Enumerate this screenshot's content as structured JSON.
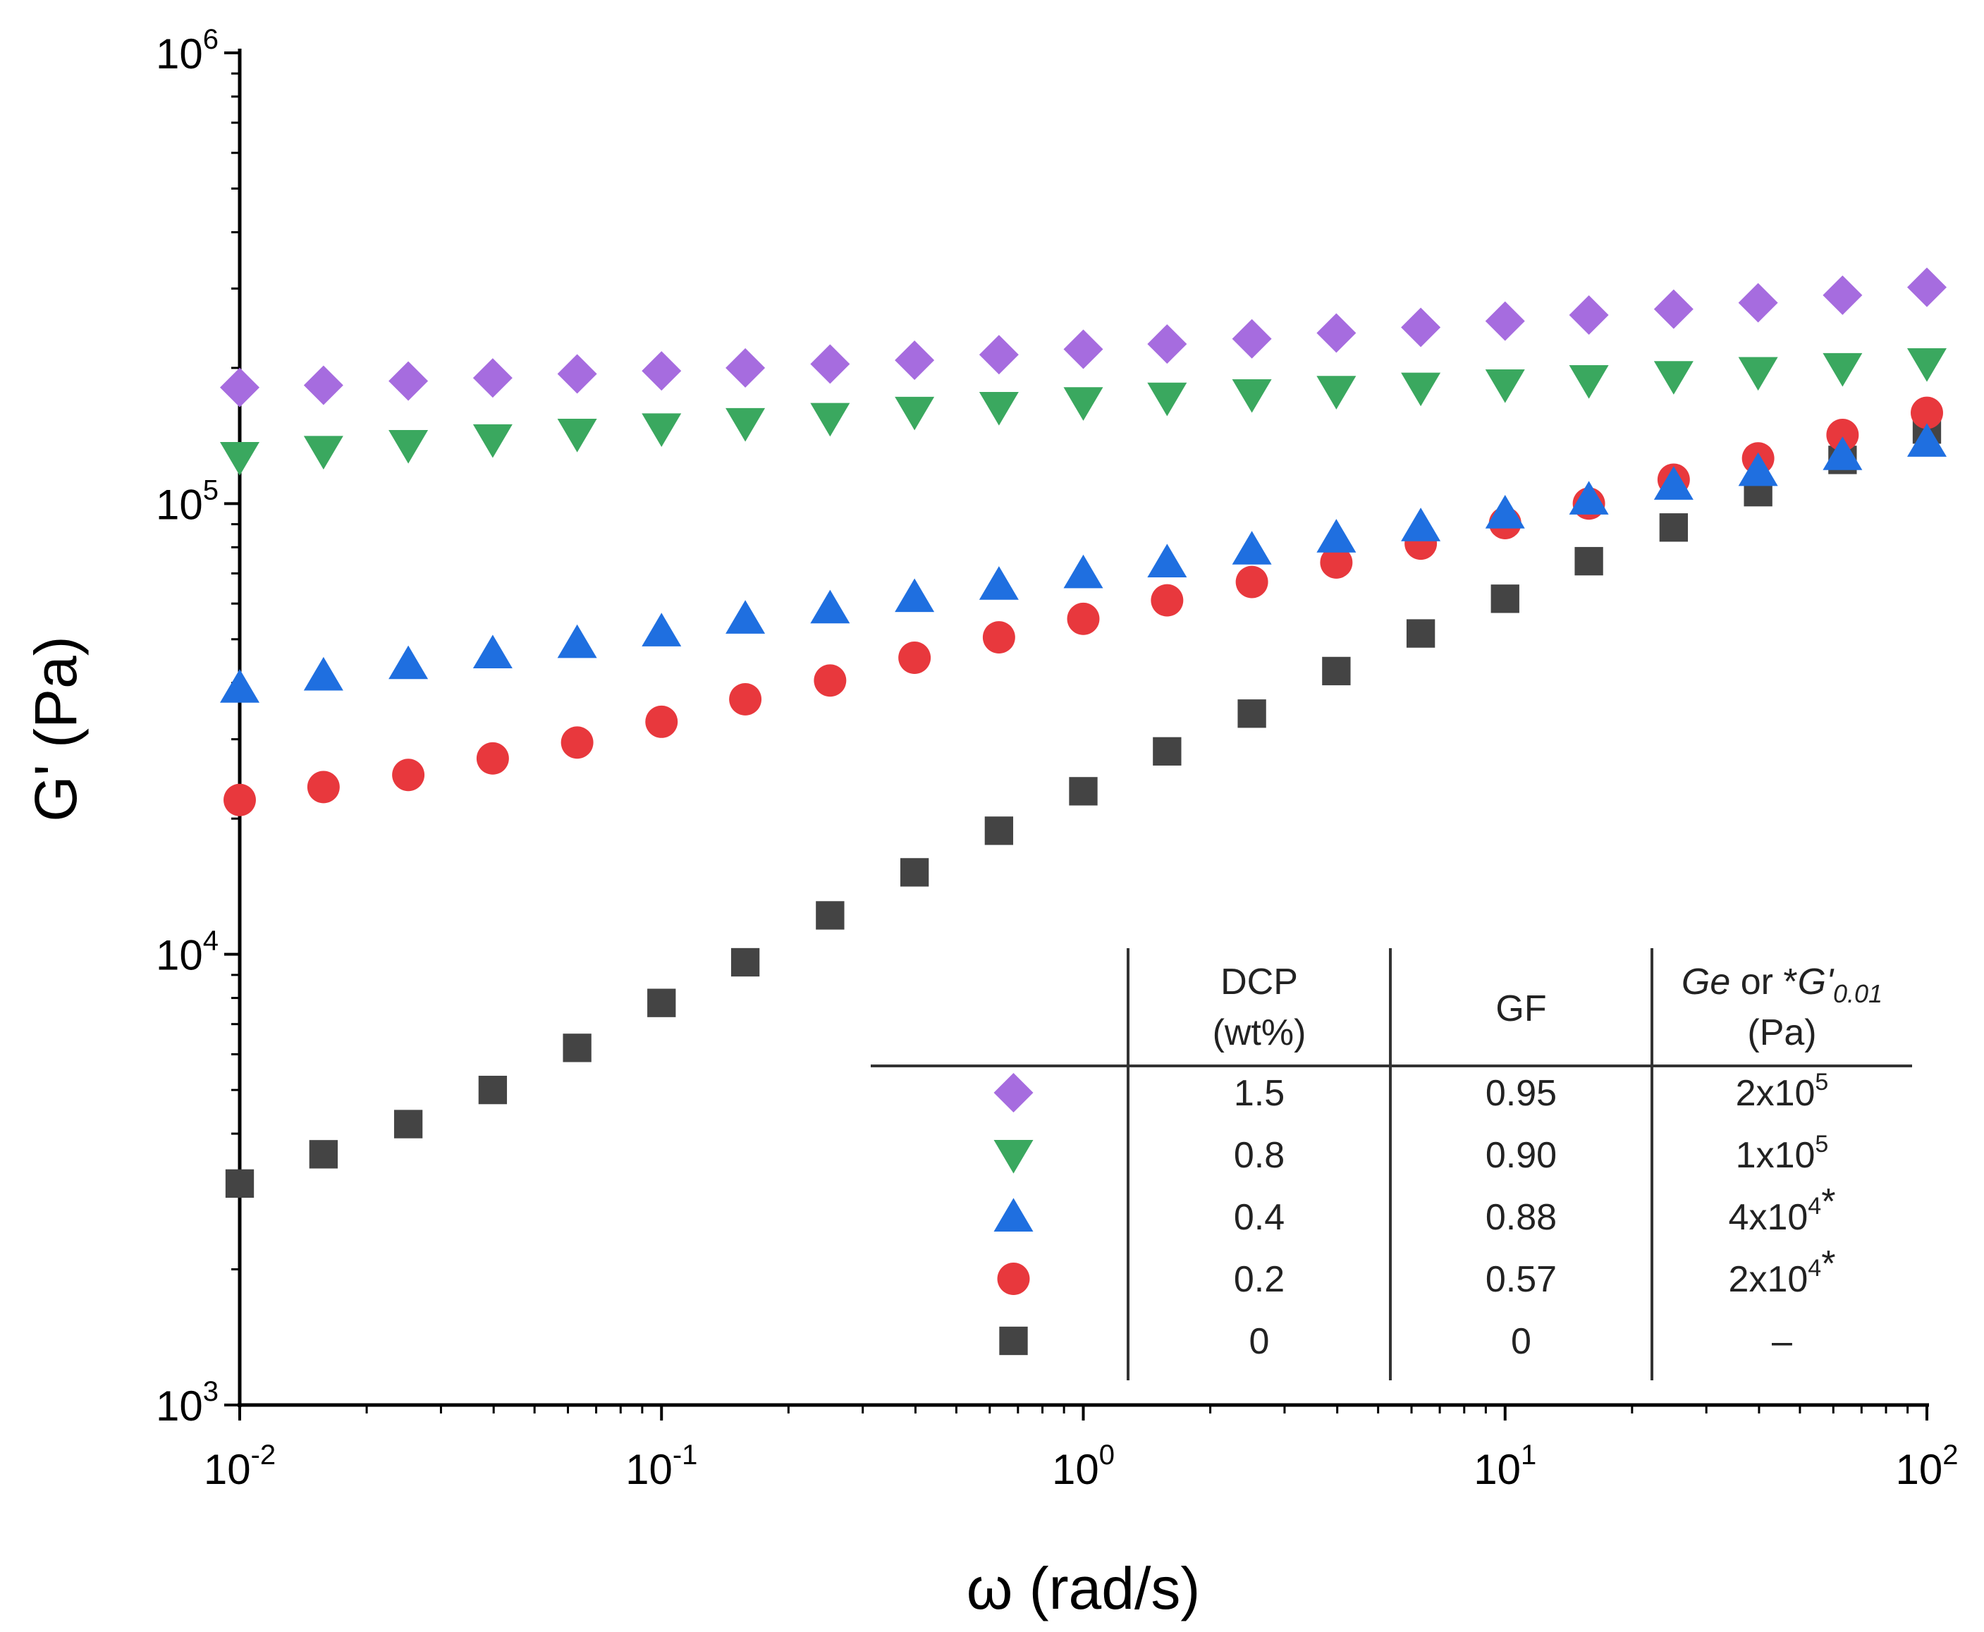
{
  "chart_data": {
    "type": "scatter",
    "xlabel": "ω (rad/s)",
    "ylabel": "G' (Pa)",
    "xscale": "log",
    "yscale": "log",
    "xlim": [
      0.01,
      100
    ],
    "ylim": [
      1000,
      1000000
    ],
    "x_ticks": [
      {
        "mant": "10",
        "exp": "-2"
      },
      {
        "mant": "10",
        "exp": "-1"
      },
      {
        "mant": "10",
        "exp": "0"
      },
      {
        "mant": "10",
        "exp": "1"
      },
      {
        "mant": "10",
        "exp": "2"
      }
    ],
    "y_ticks": [
      {
        "mant": "10",
        "exp": "3"
      },
      {
        "mant": "10",
        "exp": "4"
      },
      {
        "mant": "10",
        "exp": "5"
      },
      {
        "mant": "10",
        "exp": "6"
      }
    ],
    "x": [
      0.01,
      0.0158,
      0.0251,
      0.0398,
      0.0631,
      0.1,
      0.158,
      0.251,
      0.398,
      0.631,
      1.0,
      1.58,
      2.51,
      3.98,
      6.31,
      10.0,
      15.8,
      25.1,
      39.8,
      63.1,
      100.0
    ],
    "series": [
      {
        "name": "DCP 1.5 wt%",
        "marker": "diamond",
        "color": "#a66cdf",
        "values": [
          181000,
          183000,
          187000,
          190000,
          194000,
          197000,
          200000,
          204000,
          208000,
          214000,
          220000,
          226000,
          232000,
          239000,
          246000,
          254000,
          262000,
          270000,
          279000,
          290000,
          302000
        ]
      },
      {
        "name": "DCP 0.8 wt%",
        "marker": "triangle-down",
        "color": "#3aa85f",
        "values": [
          127000,
          131000,
          135000,
          139000,
          143000,
          147000,
          151000,
          155000,
          160000,
          164000,
          168000,
          172000,
          175000,
          178000,
          181000,
          184000,
          188000,
          192000,
          196000,
          200000,
          205000
        ]
      },
      {
        "name": "DCP 0.4 wt%",
        "marker": "triangle-up",
        "color": "#1f6fe0",
        "values": [
          39000,
          41500,
          44000,
          46500,
          49000,
          52000,
          55500,
          58500,
          62000,
          66000,
          70000,
          74000,
          79000,
          84000,
          89000,
          95000,
          102000,
          110000,
          118000,
          128000,
          137000
        ]
      },
      {
        "name": "DCP 0.2 wt%",
        "marker": "circle",
        "color": "#e8383d",
        "values": [
          22000,
          23500,
          25000,
          27200,
          29500,
          32800,
          36800,
          40500,
          45500,
          50500,
          55500,
          61000,
          67000,
          74000,
          81500,
          90500,
          100000,
          113000,
          126000,
          142000,
          159000
        ]
      },
      {
        "name": "DCP 0 wt%",
        "marker": "square",
        "color": "#444444",
        "values": [
          3100,
          3600,
          4200,
          5000,
          6200,
          7800,
          9600,
          12200,
          15200,
          18800,
          23000,
          28200,
          34200,
          42500,
          51500,
          61500,
          74500,
          88500,
          106000,
          125000,
          146000
        ]
      }
    ],
    "legend_table": {
      "position": "bottom-right",
      "headers": {
        "dcp": [
          "DCP",
          "(wt%)"
        ],
        "gf": "GF",
        "ge_a": "Ge",
        "ge_b": " or *",
        "ge_c": "G'",
        "ge_sub": "0.01",
        "ge_unit": "(Pa)"
      },
      "rows": [
        {
          "marker": "diamond",
          "color": "#a66cdf",
          "dcp": "1.5",
          "gf": "0.95",
          "ge_mant": "2x10",
          "ge_exp": "5",
          "ge_suffix": ""
        },
        {
          "marker": "triangle-down",
          "color": "#3aa85f",
          "dcp": "0.8",
          "gf": "0.90",
          "ge_mant": "1x10",
          "ge_exp": "5",
          "ge_suffix": ""
        },
        {
          "marker": "triangle-up",
          "color": "#1f6fe0",
          "dcp": "0.4",
          "gf": "0.88",
          "ge_mant": "4x10",
          "ge_exp": "4",
          "ge_suffix": "*"
        },
        {
          "marker": "circle",
          "color": "#e8383d",
          "dcp": "0.2",
          "gf": "0.57",
          "ge_mant": "2x10",
          "ge_exp": "4",
          "ge_suffix": "*"
        },
        {
          "marker": "square",
          "color": "#444444",
          "dcp": "0",
          "gf": "0",
          "ge_mant": "–",
          "ge_exp": "",
          "ge_suffix": ""
        }
      ]
    }
  }
}
